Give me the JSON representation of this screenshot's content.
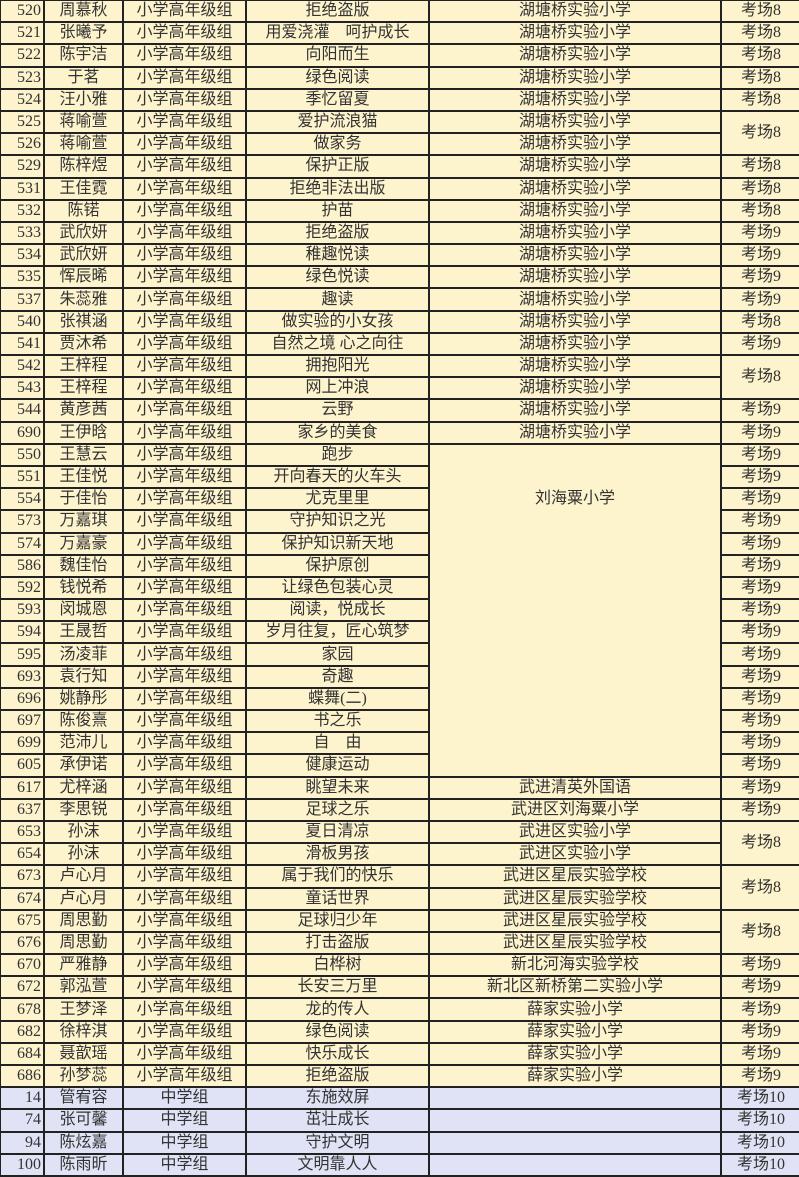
{
  "table": {
    "colors": {
      "primary_row_bg": "#fdf3cc",
      "middle_school_row_bg": "#dfe3f5",
      "border": "#222222"
    },
    "rows": [
      {
        "no": "520",
        "name": "周慕秋",
        "group": "小学高年级组",
        "title": "拒绝盗版",
        "school": "湖塘桥实验小学",
        "exam": "考场8"
      },
      {
        "no": "521",
        "name": "张曦予",
        "group": "小学高年级组",
        "title": "用爱浇灌　呵护成长",
        "school": "湖塘桥实验小学",
        "exam": "考场8"
      },
      {
        "no": "522",
        "name": "陈宇洁",
        "group": "小学高年级组",
        "title": "向阳而生",
        "school": "湖塘桥实验小学",
        "exam": "考场8"
      },
      {
        "no": "523",
        "name": "于茗",
        "group": "小学高年级组",
        "title": "绿色阅读",
        "school": "湖塘桥实验小学",
        "exam": "考场8"
      },
      {
        "no": "524",
        "name": "汪小雅",
        "group": "小学高年级组",
        "title": "季忆留夏",
        "school": "湖塘桥实验小学",
        "exam": "考场8"
      },
      {
        "no": "525",
        "name": "蒋喻萱",
        "group": "小学高年级组",
        "title": "爱护流浪猫",
        "school": "湖塘桥实验小学",
        "exam": "考场8"
      },
      {
        "no": "526",
        "name": "蒋喻萱",
        "group": "小学高年级组",
        "title": "做家务",
        "school": "湖塘桥实验小学"
      },
      {
        "no": "529",
        "name": "陈梓煜",
        "group": "小学高年级组",
        "title": "保护正版",
        "school": "湖塘桥实验小学",
        "exam": "考场8"
      },
      {
        "no": "531",
        "name": "王佳霓",
        "group": "小学高年级组",
        "title": "拒绝非法出版",
        "school": "湖塘桥实验小学",
        "exam": "考场8"
      },
      {
        "no": "532",
        "name": "陈锘",
        "group": "小学高年级组",
        "title": "护苗",
        "school": "湖塘桥实验小学",
        "exam": "考场8"
      },
      {
        "no": "533",
        "name": "武欣妍",
        "group": "小学高年级组",
        "title": "拒绝盗版",
        "school": "湖塘桥实验小学",
        "exam": "考场9"
      },
      {
        "no": "534",
        "name": "武欣妍",
        "group": "小学高年级组",
        "title": "稚趣悦读",
        "school": "湖塘桥实验小学",
        "exam": "考场9"
      },
      {
        "no": "535",
        "name": "恽辰晞",
        "group": "小学高年级组",
        "title": "绿色悦读",
        "school": "湖塘桥实验小学",
        "exam": "考场9"
      },
      {
        "no": "537",
        "name": "朱蕊雅",
        "group": "小学高年级组",
        "title": "趣读",
        "school": "湖塘桥实验小学",
        "exam": "考场9"
      },
      {
        "no": "540",
        "name": "张祺涵",
        "group": "小学高年级组",
        "title": "做实验的小女孩",
        "school": "湖塘桥实验小学",
        "exam": "考场8"
      },
      {
        "no": "541",
        "name": "贾沐希",
        "group": "小学高年级组",
        "title": "自然之境 心之向往",
        "school": "湖塘桥实验小学",
        "exam": "考场9"
      },
      {
        "no": "542",
        "name": "王梓程",
        "group": "小学高年级组",
        "title": "拥抱阳光",
        "school": "湖塘桥实验小学",
        "exam": "考场8"
      },
      {
        "no": "543",
        "name": "王梓程",
        "group": "小学高年级组",
        "title": "网上冲浪",
        "school": "湖塘桥实验小学"
      },
      {
        "no": "544",
        "name": "黄彦茜",
        "group": "小学高年级组",
        "title": "云野",
        "school": "湖塘桥实验小学",
        "exam": "考场9"
      },
      {
        "no": "690",
        "name": "王伊晗",
        "group": "小学高年级组",
        "title": "家乡的美食",
        "school": "湖塘桥实验小学",
        "exam": "考场9"
      },
      {
        "no": "550",
        "name": "王慧云",
        "group": "小学高年级组",
        "title": "跑步",
        "school": "",
        "exam": "考场9"
      },
      {
        "no": "551",
        "name": "王佳悦",
        "group": "小学高年级组",
        "title": "开向春天的火车头",
        "school": "",
        "exam": "考场9"
      },
      {
        "no": "554",
        "name": "于佳怡",
        "group": "小学高年级组",
        "title": "尤克里里",
        "school": "刘海粟小学",
        "exam": "考场9"
      },
      {
        "no": "573",
        "name": "万嘉琪",
        "group": "小学高年级组",
        "title": "守护知识之光",
        "school": "",
        "exam": "考场9"
      },
      {
        "no": "574",
        "name": "万嘉豪",
        "group": "小学高年级组",
        "title": "保护知识新天地",
        "school": "",
        "exam": "考场9"
      },
      {
        "no": "586",
        "name": "魏佳怡",
        "group": "小学高年级组",
        "title": "保护原创",
        "school": "",
        "exam": "考场9"
      },
      {
        "no": "592",
        "name": "钱悦希",
        "group": "小学高年级组",
        "title": "让绿色包装心灵",
        "school": "",
        "exam": "考场9"
      },
      {
        "no": "593",
        "name": "闵城恩",
        "group": "小学高年级组",
        "title": "阅读，悦成长",
        "school": "",
        "exam": "考场9"
      },
      {
        "no": "594",
        "name": "王晟哲",
        "group": "小学高年级组",
        "title": "岁月往复，匠心筑梦",
        "school": "",
        "exam": "考场9"
      },
      {
        "no": "595",
        "name": "汤凌菲",
        "group": "小学高年级组",
        "title": "家园",
        "school": "",
        "exam": "考场9"
      },
      {
        "no": "693",
        "name": "袁行知",
        "group": "小学高年级组",
        "title": "奇趣",
        "school": "",
        "exam": "考场9"
      },
      {
        "no": "696",
        "name": "姚静彤",
        "group": "小学高年级组",
        "title": "蝶舞(二)",
        "school": "",
        "exam": "考场9"
      },
      {
        "no": "697",
        "name": "陈俊熹",
        "group": "小学高年级组",
        "title": "书之乐",
        "school": "",
        "exam": "考场9"
      },
      {
        "no": "699",
        "name": "范沛儿",
        "group": "小学高年级组",
        "title": "自　由",
        "school": "",
        "exam": "考场9"
      },
      {
        "no": "605",
        "name": "承伊诺",
        "group": "小学高年级组",
        "title": "健康运动",
        "school": "",
        "exam": "考场9"
      },
      {
        "no": "617",
        "name": "尤梓涵",
        "group": "小学高年级组",
        "title": "眺望未来",
        "school": "武进清英外国语",
        "exam": "考场9"
      },
      {
        "no": "637",
        "name": "李思锐",
        "group": "小学高年级组",
        "title": "足球之乐",
        "school": "武进区刘海粟小学",
        "exam": "考场9"
      },
      {
        "no": "653",
        "name": "孙沫",
        "group": "小学高年级组",
        "title": "夏日清凉",
        "school": "武进区实验小学",
        "exam": "考场8"
      },
      {
        "no": "654",
        "name": "孙沫",
        "group": "小学高年级组",
        "title": "滑板男孩",
        "school": "武进区实验小学"
      },
      {
        "no": "673",
        "name": "卢心月",
        "group": "小学高年级组",
        "title": "属于我们的快乐",
        "school": "武进区星辰实验学校",
        "exam": "考场8"
      },
      {
        "no": "674",
        "name": "卢心月",
        "group": "小学高年级组",
        "title": "童话世界",
        "school": "武进区星辰实验学校"
      },
      {
        "no": "675",
        "name": "周思勤",
        "group": "小学高年级组",
        "title": "足球归少年",
        "school": "武进区星辰实验学校",
        "exam": "考场8"
      },
      {
        "no": "676",
        "name": "周思勤",
        "group": "小学高年级组",
        "title": "打击盗版",
        "school": "武进区星辰实验学校"
      },
      {
        "no": "670",
        "name": "严雅静",
        "group": "小学高年级组",
        "title": "白桦树",
        "school": "新北河海实验学校",
        "exam": "考场9"
      },
      {
        "no": "672",
        "name": "郭泓萱",
        "group": "小学高年级组",
        "title": "长安三万里",
        "school": "新北区新桥第二实验小学",
        "exam": "考场9"
      },
      {
        "no": "678",
        "name": "王梦泽",
        "group": "小学高年级组",
        "title": "龙的传人",
        "school": "薛家实验小学",
        "exam": "考场9"
      },
      {
        "no": "682",
        "name": "徐梓淇",
        "group": "小学高年级组",
        "title": "绿色阅读",
        "school": "薛家实验小学",
        "exam": "考场9"
      },
      {
        "no": "684",
        "name": "聂歆瑶",
        "group": "小学高年级组",
        "title": "快乐成长",
        "school": "薛家实验小学",
        "exam": "考场9"
      },
      {
        "no": "686",
        "name": "孙梦蕊",
        "group": "小学高年级组",
        "title": "拒绝盗版",
        "school": "薛家实验小学",
        "exam": "考场9"
      },
      {
        "no": "14",
        "name": "管宥容",
        "group": "中学组",
        "title": "东施效屏",
        "school": "",
        "exam": "考场10"
      },
      {
        "no": "74",
        "name": "张可馨",
        "group": "中学组",
        "title": "茁壮成长",
        "school": "",
        "exam": "考场10"
      },
      {
        "no": "94",
        "name": "陈炫嘉",
        "group": "中学组",
        "title": "守护文明",
        "school": "",
        "exam": "考场10"
      },
      {
        "no": "100",
        "name": "陈雨昕",
        "group": "中学组",
        "title": "文明靠人人",
        "school": "",
        "exam": "考场10"
      }
    ]
  }
}
